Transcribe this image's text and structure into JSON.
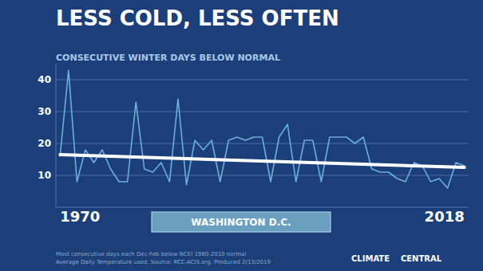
{
  "chart_data": {
    "type": "line",
    "title": "LESS COLD, LESS OFTEN",
    "subtitle": "CONSECUTIVE WINTER DAYS BELOW NORMAL",
    "location_label": "WASHINGTON D.C.",
    "footnotes": [
      "Most consecutive days each Dec-Feb below NCEI 1980-2010 normal",
      "Average Daily Temperature used. Source: RCC-ACIS.org. Produced 2/13/2019"
    ],
    "credit": "CLIMATE    CENTRAL",
    "x": [
      1970,
      1971,
      1972,
      1973,
      1974,
      1975,
      1976,
      1977,
      1978,
      1979,
      1980,
      1981,
      1982,
      1983,
      1984,
      1985,
      1986,
      1987,
      1988,
      1989,
      1990,
      1991,
      1992,
      1993,
      1994,
      1995,
      1996,
      1997,
      1998,
      1999,
      2000,
      2001,
      2002,
      2003,
      2004,
      2005,
      2006,
      2007,
      2008,
      2009,
      2010,
      2011,
      2012,
      2013,
      2014,
      2015,
      2016,
      2017,
      2018
    ],
    "series": [
      {
        "color": "#6ab0d8",
        "values": [
          16,
          43,
          8,
          18,
          14,
          18,
          12,
          8,
          8,
          33,
          12,
          11,
          14,
          8,
          34,
          7,
          21,
          18,
          21,
          8,
          21,
          22,
          21,
          22,
          22,
          8,
          22,
          26,
          8,
          21,
          21,
          8,
          22,
          22,
          22,
          20,
          22,
          12,
          11,
          11,
          9,
          8,
          14,
          13,
          8,
          9,
          6,
          14,
          13
        ]
      },
      {
        "color": "#ffffff",
        "x": [
          1970,
          2018
        ],
        "values": [
          16.5,
          12.5
        ]
      }
    ],
    "xlim": [
      1969.5,
      2018.5
    ],
    "xticks": [
      1970,
      2018
    ],
    "ylim": [
      0,
      45
    ],
    "yticks": [
      10,
      20,
      30,
      40
    ],
    "grid": true
  }
}
